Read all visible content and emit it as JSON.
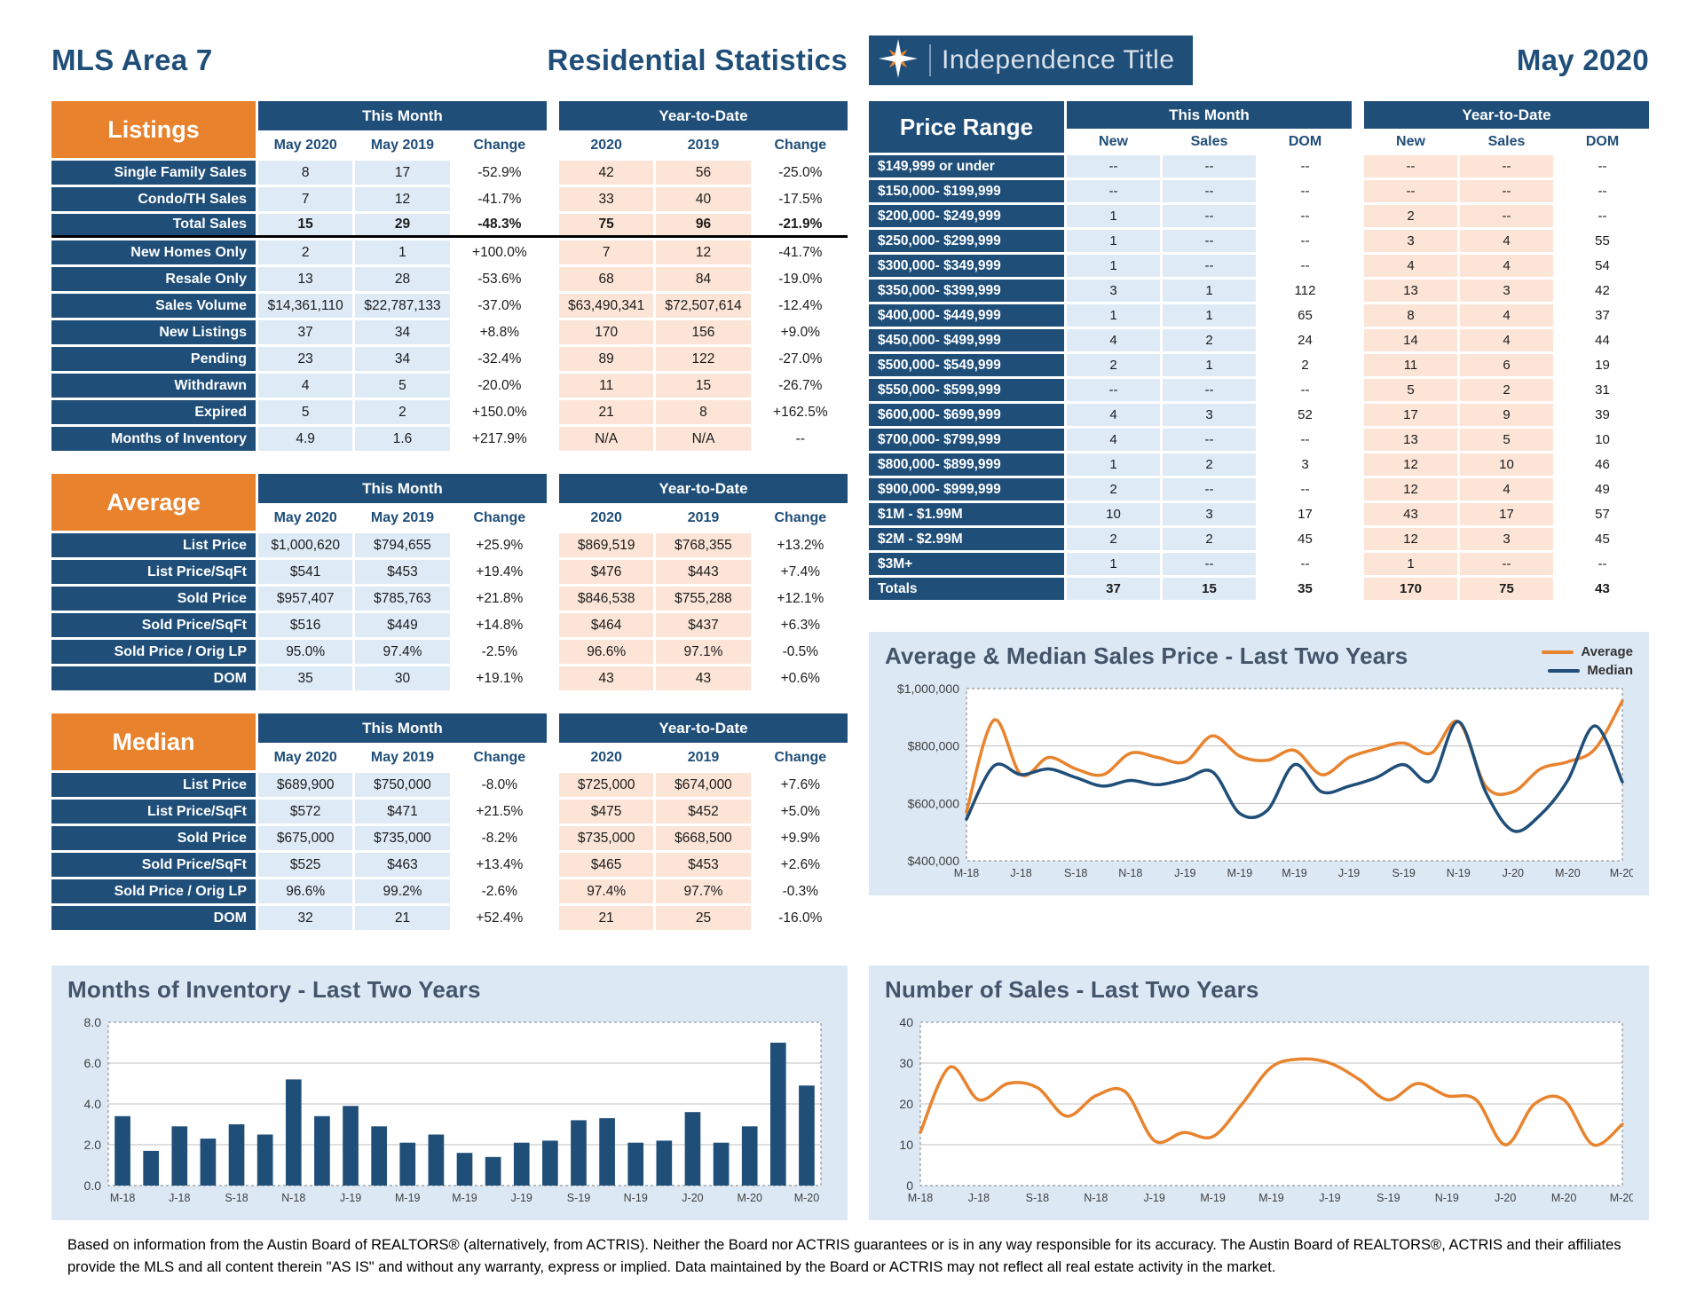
{
  "header": {
    "area_title": "MLS Area 7",
    "report_title": "Residential Statistics",
    "logo_text": "Independence Title",
    "report_date": "May 2020"
  },
  "tables": {
    "group_labels": [
      "This Month",
      "Year-to-Date"
    ],
    "listings": {
      "title": "Listings",
      "columns": [
        "May 2020",
        "May 2019",
        "Change",
        "2020",
        "2019",
        "Change"
      ],
      "rows": [
        {
          "label": "Single Family Sales",
          "values": [
            "8",
            "17",
            "-52.9%",
            "42",
            "56",
            "-25.0%"
          ]
        },
        {
          "label": "Condo/TH Sales",
          "values": [
            "7",
            "12",
            "-41.7%",
            "33",
            "40",
            "-17.5%"
          ]
        },
        {
          "label": "Total Sales",
          "values": [
            "15",
            "29",
            "-48.3%",
            "75",
            "96",
            "-21.9%"
          ],
          "bold": true,
          "divider": true
        },
        {
          "label": "New Homes Only",
          "values": [
            "2",
            "1",
            "+100.0%",
            "7",
            "12",
            "-41.7%"
          ]
        },
        {
          "label": "Resale Only",
          "values": [
            "13",
            "28",
            "-53.6%",
            "68",
            "84",
            "-19.0%"
          ]
        },
        {
          "label": "Sales Volume",
          "values": [
            "$14,361,110",
            "$22,787,133",
            "-37.0%",
            "$63,490,341",
            "$72,507,614",
            "-12.4%"
          ]
        },
        {
          "label": "New Listings",
          "values": [
            "37",
            "34",
            "+8.8%",
            "170",
            "156",
            "+9.0%"
          ]
        },
        {
          "label": "Pending",
          "values": [
            "23",
            "34",
            "-32.4%",
            "89",
            "122",
            "-27.0%"
          ]
        },
        {
          "label": "Withdrawn",
          "values": [
            "4",
            "5",
            "-20.0%",
            "11",
            "15",
            "-26.7%"
          ]
        },
        {
          "label": "Expired",
          "values": [
            "5",
            "2",
            "+150.0%",
            "21",
            "8",
            "+162.5%"
          ]
        },
        {
          "label": "Months of Inventory",
          "values": [
            "4.9",
            "1.6",
            "+217.9%",
            "N/A",
            "N/A",
            "--"
          ]
        }
      ]
    },
    "average": {
      "title": "Average",
      "columns": [
        "May 2020",
        "May 2019",
        "Change",
        "2020",
        "2019",
        "Change"
      ],
      "rows": [
        {
          "label": "List Price",
          "values": [
            "$1,000,620",
            "$794,655",
            "+25.9%",
            "$869,519",
            "$768,355",
            "+13.2%"
          ]
        },
        {
          "label": "List Price/SqFt",
          "values": [
            "$541",
            "$453",
            "+19.4%",
            "$476",
            "$443",
            "+7.4%"
          ]
        },
        {
          "label": "Sold Price",
          "values": [
            "$957,407",
            "$785,763",
            "+21.8%",
            "$846,538",
            "$755,288",
            "+12.1%"
          ]
        },
        {
          "label": "Sold Price/SqFt",
          "values": [
            "$516",
            "$449",
            "+14.8%",
            "$464",
            "$437",
            "+6.3%"
          ]
        },
        {
          "label": "Sold Price / Orig LP",
          "values": [
            "95.0%",
            "97.4%",
            "-2.5%",
            "96.6%",
            "97.1%",
            "-0.5%"
          ]
        },
        {
          "label": "DOM",
          "values": [
            "35",
            "30",
            "+19.1%",
            "43",
            "43",
            "+0.6%"
          ]
        }
      ]
    },
    "median": {
      "title": "Median",
      "columns": [
        "May 2020",
        "May 2019",
        "Change",
        "2020",
        "2019",
        "Change"
      ],
      "rows": [
        {
          "label": "List Price",
          "values": [
            "$689,900",
            "$750,000",
            "-8.0%",
            "$725,000",
            "$674,000",
            "+7.6%"
          ]
        },
        {
          "label": "List Price/SqFt",
          "values": [
            "$572",
            "$471",
            "+21.5%",
            "$475",
            "$452",
            "+5.0%"
          ]
        },
        {
          "label": "Sold Price",
          "values": [
            "$675,000",
            "$735,000",
            "-8.2%",
            "$735,000",
            "$668,500",
            "+9.9%"
          ]
        },
        {
          "label": "Sold Price/SqFt",
          "values": [
            "$525",
            "$463",
            "+13.4%",
            "$465",
            "$453",
            "+2.6%"
          ]
        },
        {
          "label": "Sold Price / Orig LP",
          "values": [
            "96.6%",
            "99.2%",
            "-2.6%",
            "97.4%",
            "97.7%",
            "-0.3%"
          ]
        },
        {
          "label": "DOM",
          "values": [
            "32",
            "21",
            "+52.4%",
            "21",
            "25",
            "-16.0%"
          ]
        }
      ]
    }
  },
  "price_range": {
    "title": "Price Range",
    "columns": [
      "New",
      "Sales",
      "DOM",
      "New",
      "Sales",
      "DOM"
    ],
    "rows": [
      {
        "label": "$149,999 or under",
        "values": [
          "--",
          "--",
          "--",
          "--",
          "--",
          "--"
        ]
      },
      {
        "label": "$150,000- $199,999",
        "values": [
          "--",
          "--",
          "--",
          "--",
          "--",
          "--"
        ]
      },
      {
        "label": "$200,000- $249,999",
        "values": [
          "1",
          "--",
          "--",
          "2",
          "--",
          "--"
        ]
      },
      {
        "label": "$250,000- $299,999",
        "values": [
          "1",
          "--",
          "--",
          "3",
          "4",
          "55"
        ]
      },
      {
        "label": "$300,000- $349,999",
        "values": [
          "1",
          "--",
          "--",
          "4",
          "4",
          "54"
        ]
      },
      {
        "label": "$350,000- $399,999",
        "values": [
          "3",
          "1",
          "112",
          "13",
          "3",
          "42"
        ]
      },
      {
        "label": "$400,000- $449,999",
        "values": [
          "1",
          "1",
          "65",
          "8",
          "4",
          "37"
        ]
      },
      {
        "label": "$450,000- $499,999",
        "values": [
          "4",
          "2",
          "24",
          "14",
          "4",
          "44"
        ]
      },
      {
        "label": "$500,000- $549,999",
        "values": [
          "2",
          "1",
          "2",
          "11",
          "6",
          "19"
        ]
      },
      {
        "label": "$550,000- $599,999",
        "values": [
          "--",
          "--",
          "--",
          "5",
          "2",
          "31"
        ]
      },
      {
        "label": "$600,000- $699,999",
        "values": [
          "4",
          "3",
          "52",
          "17",
          "9",
          "39"
        ]
      },
      {
        "label": "$700,000- $799,999",
        "values": [
          "4",
          "--",
          "--",
          "13",
          "5",
          "10"
        ]
      },
      {
        "label": "$800,000- $899,999",
        "values": [
          "1",
          "2",
          "3",
          "12",
          "10",
          "46"
        ]
      },
      {
        "label": "$900,000- $999,999",
        "values": [
          "2",
          "--",
          "--",
          "12",
          "4",
          "49"
        ]
      },
      {
        "label": "$1M - $1.99M",
        "values": [
          "10",
          "3",
          "17",
          "43",
          "17",
          "57"
        ]
      },
      {
        "label": "$2M - $2.99M",
        "values": [
          "2",
          "2",
          "45",
          "12",
          "3",
          "45"
        ]
      },
      {
        "label": "$3M+",
        "values": [
          "1",
          "--",
          "--",
          "1",
          "--",
          "--"
        ]
      }
    ],
    "totals": {
      "label": "Totals",
      "values": [
        "37",
        "15",
        "35",
        "170",
        "75",
        "43"
      ]
    }
  },
  "chart_data": [
    {
      "type": "line",
      "title": "Average & Median Sales Price - Last Two Years",
      "x_tick_labels": [
        "M-18",
        "J-18",
        "S-18",
        "N-18",
        "J-19",
        "M-19",
        "M-19",
        "J-19",
        "S-19",
        "N-19",
        "J-20",
        "M-20",
        "M-20"
      ],
      "n_points": 25,
      "ylim": [
        400000,
        1000000
      ],
      "y_ticks": [
        "$400,000",
        "$600,000",
        "$800,000",
        "$1,000,000"
      ],
      "y_tick_values": [
        400000,
        600000,
        800000,
        1000000
      ],
      "legend_position": "top-right",
      "series": [
        {
          "name": "Average",
          "color": "#E8832E",
          "values": [
            570000,
            890000,
            700000,
            760000,
            720000,
            700000,
            775000,
            760000,
            745000,
            835000,
            765000,
            750000,
            785000,
            700000,
            760000,
            790000,
            810000,
            775000,
            885000,
            660000,
            640000,
            720000,
            745000,
            790000,
            957000
          ]
        },
        {
          "name": "Median",
          "color": "#1F4E79",
          "values": [
            545000,
            730000,
            700000,
            720000,
            690000,
            660000,
            680000,
            665000,
            685000,
            710000,
            565000,
            575000,
            735000,
            640000,
            660000,
            690000,
            735000,
            680000,
            885000,
            640000,
            505000,
            560000,
            680000,
            870000,
            675000
          ]
        }
      ]
    },
    {
      "type": "bar",
      "title": "Months of Inventory - Last Two Years",
      "x_tick_labels": [
        "M-18",
        "J-18",
        "S-18",
        "N-18",
        "J-19",
        "M-19",
        "M-19",
        "J-19",
        "S-19",
        "N-19",
        "J-20",
        "M-20",
        "M-20"
      ],
      "n_points": 25,
      "ylim": [
        0,
        8
      ],
      "y_ticks": [
        "0.0",
        "2.0",
        "4.0",
        "6.0",
        "8.0"
      ],
      "y_tick_values": [
        0,
        2,
        4,
        6,
        8
      ],
      "bar_color": "#1F4E79",
      "values": [
        3.4,
        1.7,
        2.9,
        2.3,
        3.0,
        2.5,
        5.2,
        3.4,
        3.9,
        2.9,
        2.1,
        2.5,
        1.6,
        1.4,
        2.1,
        2.2,
        3.2,
        3.3,
        2.1,
        2.2,
        3.6,
        2.1,
        2.9,
        7.0,
        4.9
      ]
    },
    {
      "type": "line",
      "title": "Number of Sales - Last Two Years",
      "x_tick_labels": [
        "M-18",
        "J-18",
        "S-18",
        "N-18",
        "J-19",
        "M-19",
        "M-19",
        "J-19",
        "S-19",
        "N-19",
        "J-20",
        "M-20",
        "M-20"
      ],
      "n_points": 25,
      "ylim": [
        0,
        40
      ],
      "y_ticks": [
        "0",
        "10",
        "20",
        "30",
        "40"
      ],
      "y_tick_values": [
        0,
        10,
        20,
        30,
        40
      ],
      "series": [
        {
          "name": "Sales",
          "color": "#E8832E",
          "values": [
            13,
            29,
            21,
            25,
            24,
            17,
            22,
            23,
            11,
            13,
            12,
            20,
            29,
            31,
            30,
            26,
            21,
            25,
            22,
            21,
            10,
            20,
            21,
            10,
            15
          ]
        }
      ]
    }
  ],
  "footer": {
    "disclaimer": "Based on information from the Austin Board of REALTORS® (alternatively, from ACTRIS). Neither the Board nor ACTRIS guarantees or is in any way responsible for its accuracy. The Austin Board of REALTORS®, ACTRIS and their affiliates provide the MLS and all content therein \"AS IS\" and without any warranty, express or implied. Data maintained by the Board or ACTRIS may not reflect all real estate activity in the market."
  }
}
